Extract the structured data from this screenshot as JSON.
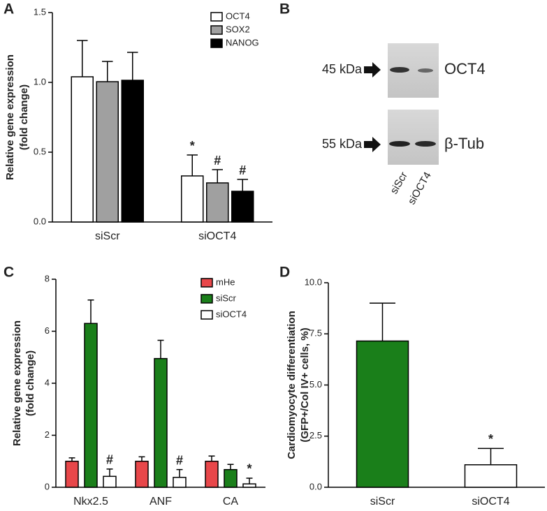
{
  "chart_data": [
    {
      "type": "bar",
      "panel": "A",
      "ylabel": [
        "Relative gene expression",
        "(fold change)"
      ],
      "categories": [
        "siScr",
        "siOCT4"
      ],
      "series": [
        {
          "name": "OCT4",
          "color": "#ffffff",
          "values": [
            1.04,
            0.33
          ],
          "errors": [
            0.26,
            0.15
          ],
          "annotations": [
            null,
            "*"
          ]
        },
        {
          "name": "SOX2",
          "color": "#a0a0a0",
          "values": [
            1.005,
            0.28
          ],
          "errors": [
            0.145,
            0.095
          ],
          "annotations": [
            null,
            "#"
          ]
        },
        {
          "name": "NANOG",
          "color": "#000000",
          "values": [
            1.015,
            0.22
          ],
          "errors": [
            0.2,
            0.085
          ],
          "annotations": [
            null,
            "#"
          ]
        }
      ],
      "ylim": [
        0,
        1.5
      ],
      "yticks": [
        {
          "value": 0,
          "label": "0.0"
        },
        {
          "value": 0.5,
          "label": "0.5"
        },
        {
          "value": 1,
          "label": "1.0"
        },
        {
          "value": 1.5,
          "label": "1.5"
        }
      ]
    },
    {
      "type": "bar",
      "panel": "C",
      "ylabel": [
        "Relative gene expression",
        "(fold change)"
      ],
      "categories": [
        "Nkx2.5",
        "ANF",
        "CA"
      ],
      "series": [
        {
          "name": "mHe",
          "color": "#e8474a",
          "values": [
            1.0,
            1.0,
            1.0
          ],
          "errors": [
            0.13,
            0.17,
            0.2
          ],
          "annotations": [
            null,
            null,
            null
          ]
        },
        {
          "name": "siScr",
          "color": "#1a7f1a",
          "values": [
            6.3,
            4.95,
            0.68
          ],
          "errors": [
            0.9,
            0.7,
            0.2
          ],
          "annotations": [
            null,
            null,
            null
          ]
        },
        {
          "name": "siOCT4",
          "color": "#ffffff",
          "values": [
            0.42,
            0.38,
            0.13
          ],
          "errors": [
            0.28,
            0.3,
            0.22
          ],
          "annotations": [
            "#",
            "#",
            "*"
          ]
        }
      ],
      "ylim": [
        0,
        8
      ],
      "yticks": [
        0,
        2,
        4,
        6,
        8
      ]
    },
    {
      "type": "bar",
      "panel": "D",
      "ylabel": [
        "Cardiomyocyte differentiation",
        "(GFP+/Col IV+ cells, %)"
      ],
      "categories": [
        "siScr",
        "siOCT4"
      ],
      "values": [
        7.15,
        1.1
      ],
      "errors": [
        1.85,
        0.8
      ],
      "annotations": [
        null,
        "*"
      ],
      "color": [
        "#1a7f1a",
        "#ffffff"
      ],
      "ylim": [
        0,
        10
      ],
      "yticks": [
        {
          "value": 0,
          "label": "0.0"
        },
        {
          "value": 2.5,
          "label": "2.5"
        },
        {
          "value": 5,
          "label": "5.0"
        },
        {
          "value": 7.5,
          "label": "7.5"
        },
        {
          "value": 10,
          "label": "10.0"
        }
      ]
    }
  ],
  "blot": {
    "panel": "B",
    "markers": [
      {
        "size": "45 kDa",
        "protein": "OCT4"
      },
      {
        "size": "55 kDa",
        "protein": "β-Tub"
      }
    ],
    "lanes": [
      "siScr",
      "siOCT4"
    ]
  }
}
